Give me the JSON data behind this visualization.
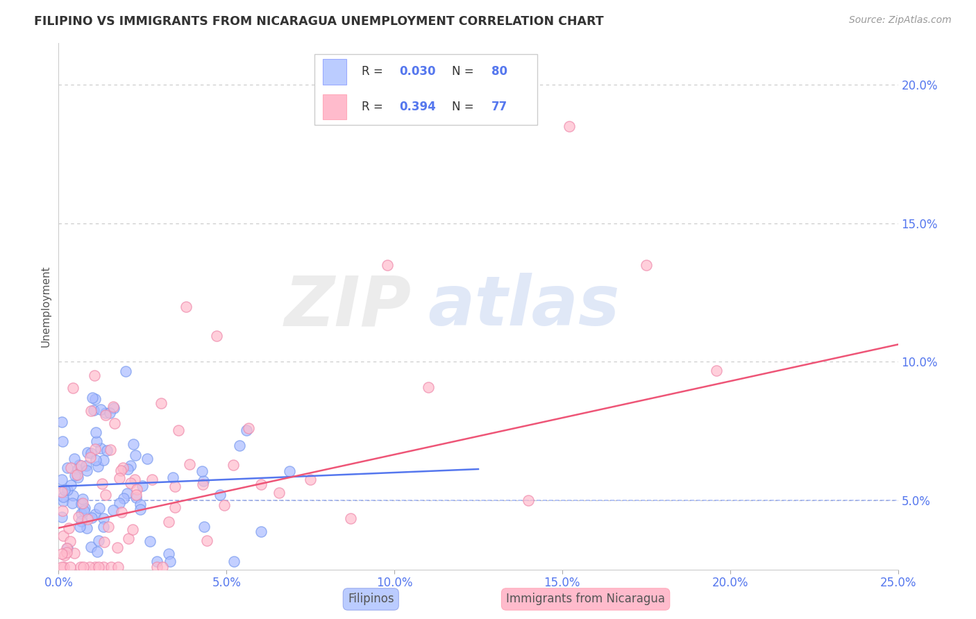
{
  "title": "FILIPINO VS IMMIGRANTS FROM NICARAGUA UNEMPLOYMENT CORRELATION CHART",
  "source": "Source: ZipAtlas.com",
  "ylabel": "Unemployment",
  "xlim": [
    0.0,
    0.25
  ],
  "ylim": [
    0.025,
    0.215
  ],
  "xticks": [
    0.0,
    0.05,
    0.1,
    0.15,
    0.2,
    0.25
  ],
  "xtick_labels": [
    "0.0%",
    "5.0%",
    "10.0%",
    "15.0%",
    "20.0%",
    "25.0%"
  ],
  "yticks": [
    0.05,
    0.1,
    0.15,
    0.2
  ],
  "ytick_labels": [
    "5.0%",
    "10.0%",
    "15.0%",
    "20.0%"
  ],
  "blue_color": "#5577EE",
  "pink_color": "#EE5577",
  "scatter_blue_face": "#AABBFF",
  "scatter_blue_edge": "#7799EE",
  "scatter_pink_face": "#FFBBCC",
  "scatter_pink_edge": "#EE88AA",
  "legend_blue_box": "#BBCCFF",
  "legend_pink_box": "#FFBBCC",
  "R_blue": 0.03,
  "N_blue": 80,
  "R_pink": 0.394,
  "N_pink": 77,
  "watermark_zip_color": "#DDDDDD",
  "watermark_atlas_color": "#BBCCEE",
  "background_color": "#FFFFFF",
  "grid_color": "#BBBBBB",
  "tick_color": "#5577EE",
  "title_color": "#333333",
  "source_color": "#999999",
  "ylabel_color": "#555555",
  "bottom_legend_bg_blue": "#BBCCFF",
  "bottom_legend_bg_pink": "#FFBBCC"
}
